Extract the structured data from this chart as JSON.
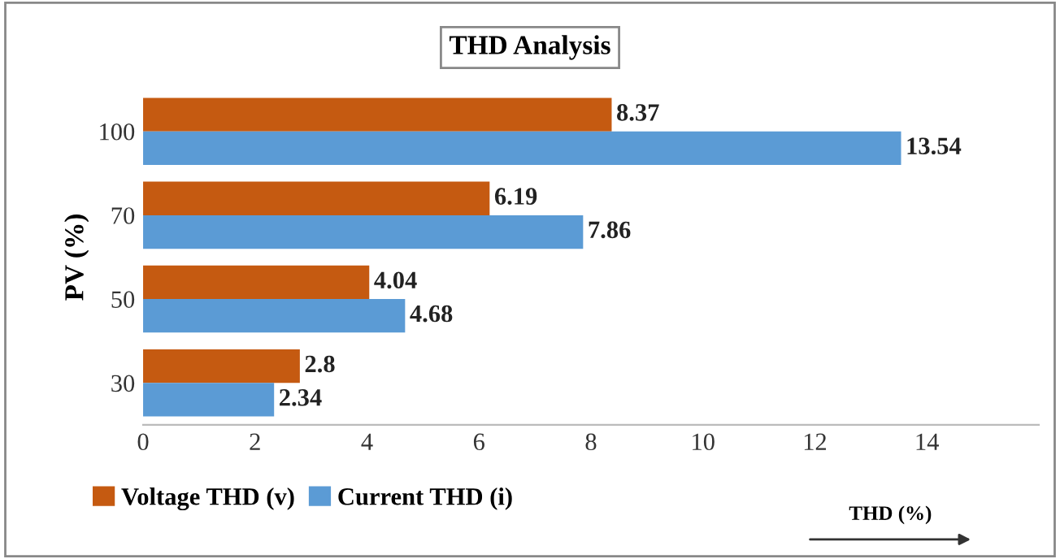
{
  "chart_data": {
    "type": "bar",
    "orientation": "horizontal",
    "title": "THD Analysis",
    "xlabel": "THD (%)",
    "ylabel": "PV (%)",
    "categories": [
      "100",
      "70",
      "50",
      "30"
    ],
    "series": [
      {
        "name": "Voltage THD (v)",
        "color": "#c55a11",
        "values": [
          8.37,
          6.19,
          4.04,
          2.8
        ]
      },
      {
        "name": "Current THD (i)",
        "color": "#5b9bd5",
        "values": [
          13.54,
          7.86,
          4.68,
          2.34
        ]
      }
    ],
    "xlim": [
      0,
      16
    ],
    "xticks": [
      0,
      2,
      4,
      6,
      8,
      10,
      12,
      14
    ],
    "data_labels": true,
    "grid": false,
    "legend": "bottom left"
  }
}
